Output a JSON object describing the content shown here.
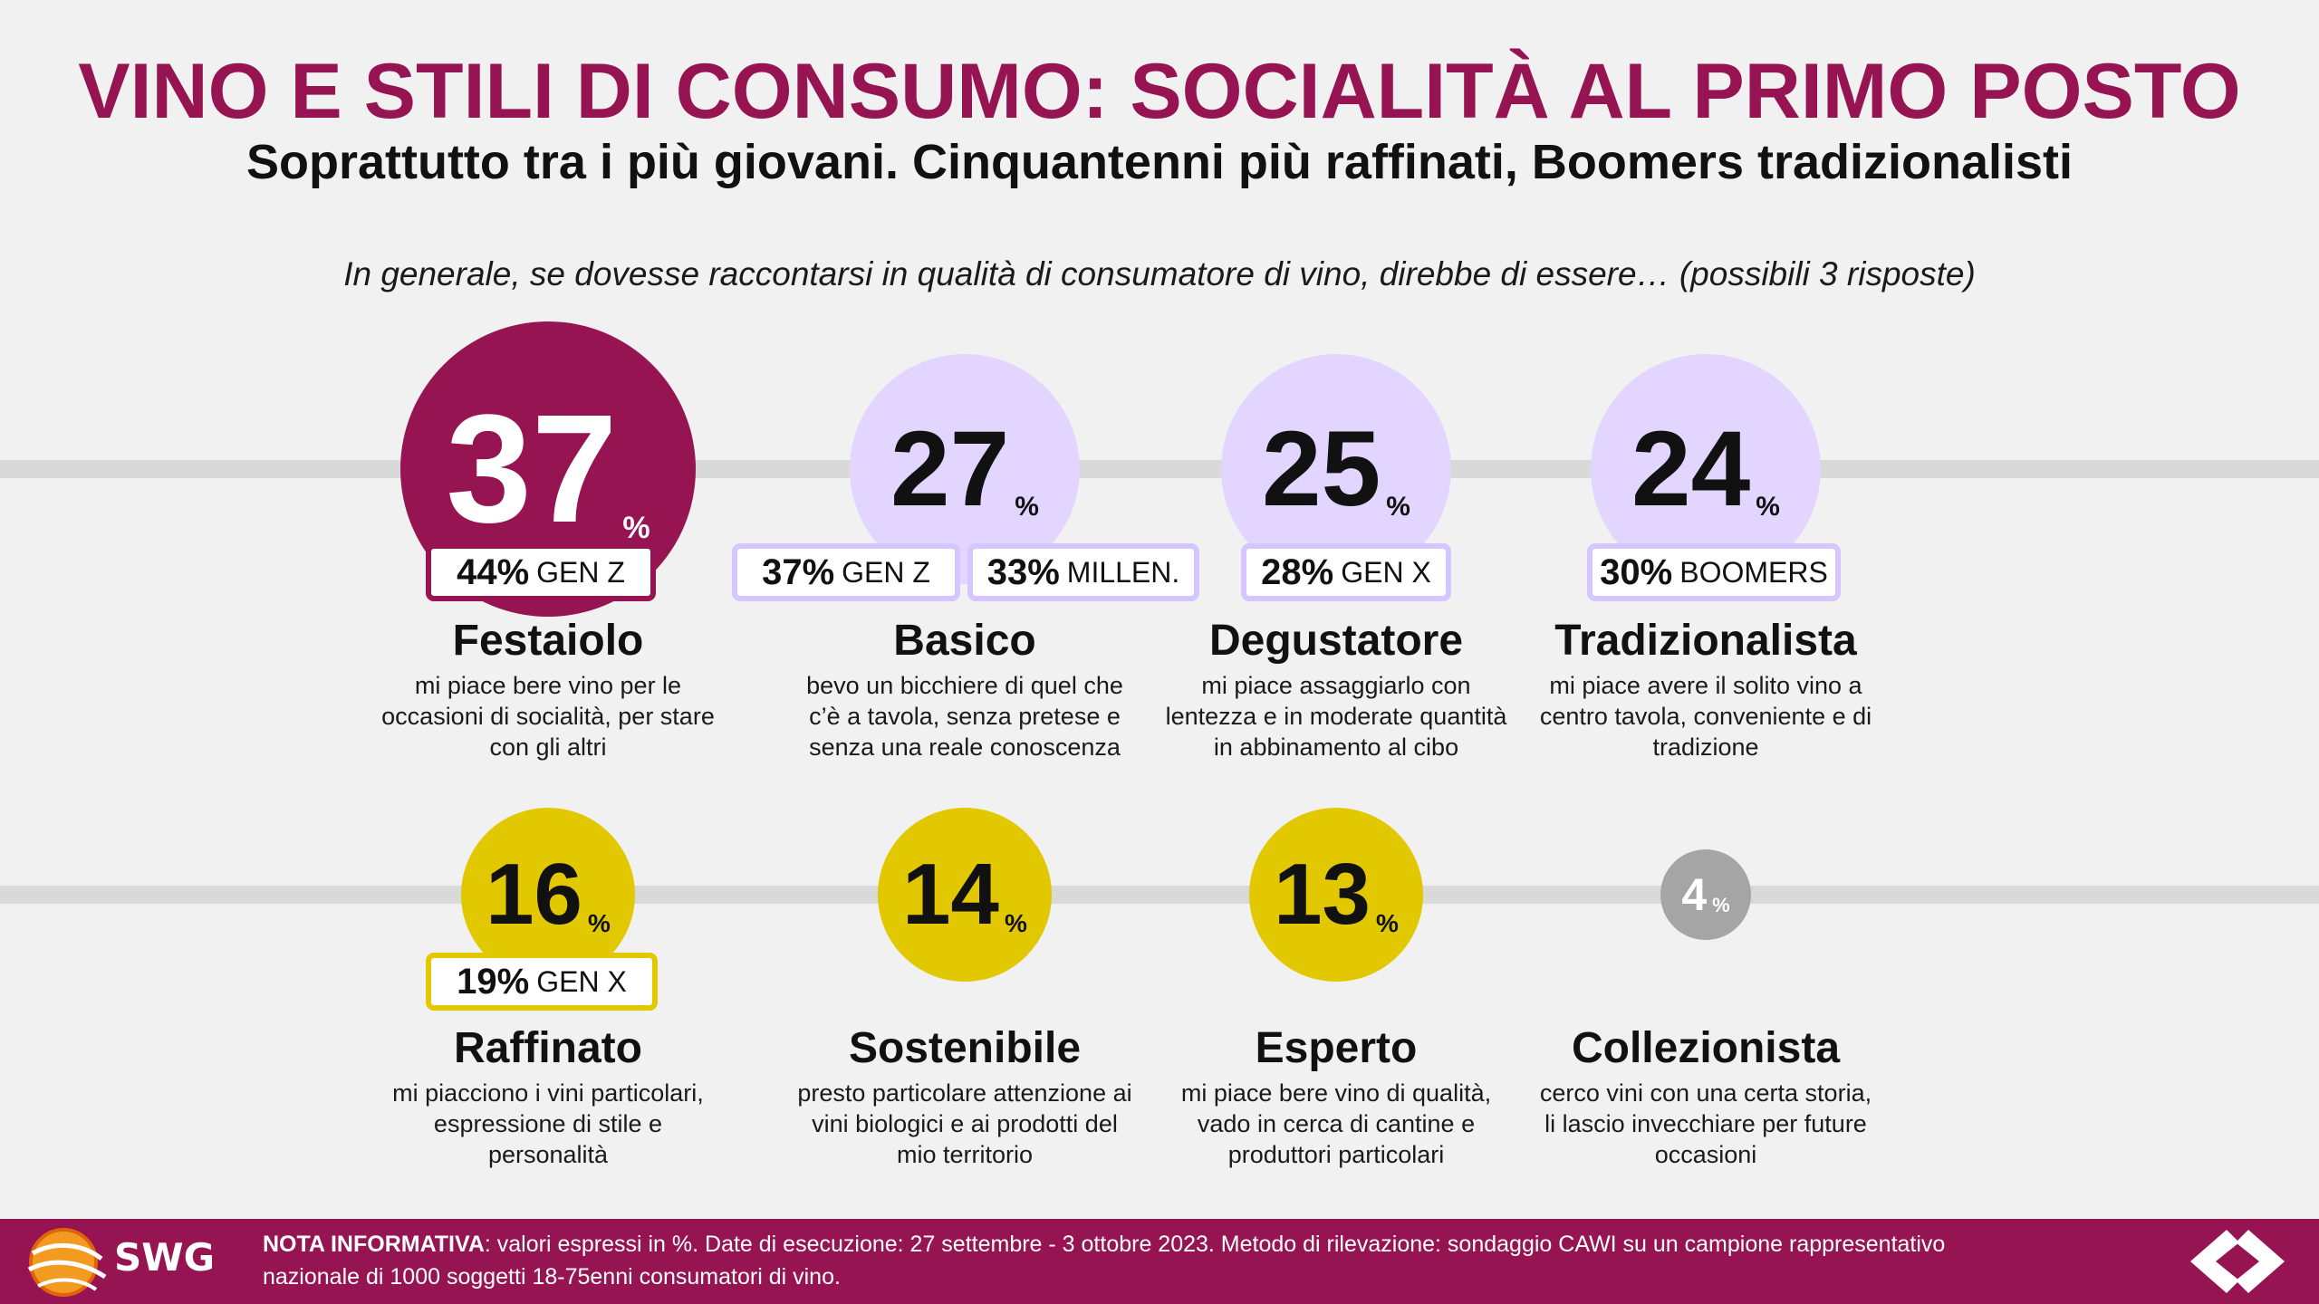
{
  "header": {
    "title": "VINO E STILI DI CONSUMO: SOCIALITÀ AL PRIMO POSTO",
    "subtitle": "Soprattutto tra i più giovani. Cinquantenni più raffinati, Boomers tradizionalisti",
    "question": "In generale, se dovesse raccontarsi in qualità di consumatore di vino, direbbe di essere… (possibili 3 risposte)"
  },
  "colors": {
    "brand": "#961452",
    "lavender": "#e2d5ff",
    "lavender_border": "#d6c6ff",
    "yellow": "#e1c800",
    "grey": "#a5a5a5"
  },
  "chart_data": {
    "type": "bubble",
    "unit": "%",
    "categories": [
      {
        "name": "Festaiolo",
        "value": 37,
        "pct": "%",
        "desc": "mi piace bere vino per le occasioni di socialità, per stare con gli altri",
        "tags": [
          {
            "value": "44%",
            "label": "GEN Z"
          }
        ]
      },
      {
        "name": "Basico",
        "value": 27,
        "pct": "%",
        "desc": "bevo un bicchiere di quel che c’è a tavola, senza pretese e senza una reale conoscenza",
        "tags": [
          {
            "value": "37%",
            "label": "GEN Z"
          },
          {
            "value": "33%",
            "label": "MILLEN."
          }
        ]
      },
      {
        "name": "Degustatore",
        "value": 25,
        "pct": "%",
        "desc": "mi piace assaggiarlo con lentezza e in moderate quantità in abbinamento al cibo",
        "tags": [
          {
            "value": "28%",
            "label": "GEN X"
          }
        ]
      },
      {
        "name": "Tradizionalista",
        "value": 24,
        "pct": "%",
        "desc": "mi piace avere il solito vino a centro tavola, conveniente e di tradizione",
        "tags": [
          {
            "value": "30%",
            "label": "BOOMERS"
          }
        ]
      },
      {
        "name": "Raffinato",
        "value": 16,
        "pct": "%",
        "desc": "mi piacciono i vini particolari, espressione di stile e personalità",
        "tags": [
          {
            "value": "19%",
            "label": "GEN X"
          }
        ]
      },
      {
        "name": "Sostenibile",
        "value": 14,
        "pct": "%",
        "desc": "presto particolare attenzione ai vini biologici e ai prodotti del mio territorio",
        "tags": []
      },
      {
        "name": "Esperto",
        "value": 13,
        "pct": "%",
        "desc": "mi piace bere vino di qualità, vado in cerca di cantine e produttori particolari",
        "tags": []
      },
      {
        "name": "Collezionista",
        "value": 4,
        "pct": "%",
        "desc": "cerco vini con una certa storia, li lascio invecchiare per future occasioni",
        "tags": []
      }
    ]
  },
  "footer": {
    "brand": "SWG",
    "note_label": "NOTA INFORMATIVA",
    "note_text": ": valori espressi in %. Date di esecuzione: 27 settembre - 3 ottobre 2023. Metodo di rilevazione: sondaggio CAWI su un campione rappresentativo nazionale di 1000 soggetti 18-75enni consumatori di vino.",
    "logo_icon": "carrefour-logo-icon",
    "swg_icon": "swg-globe-icon"
  }
}
